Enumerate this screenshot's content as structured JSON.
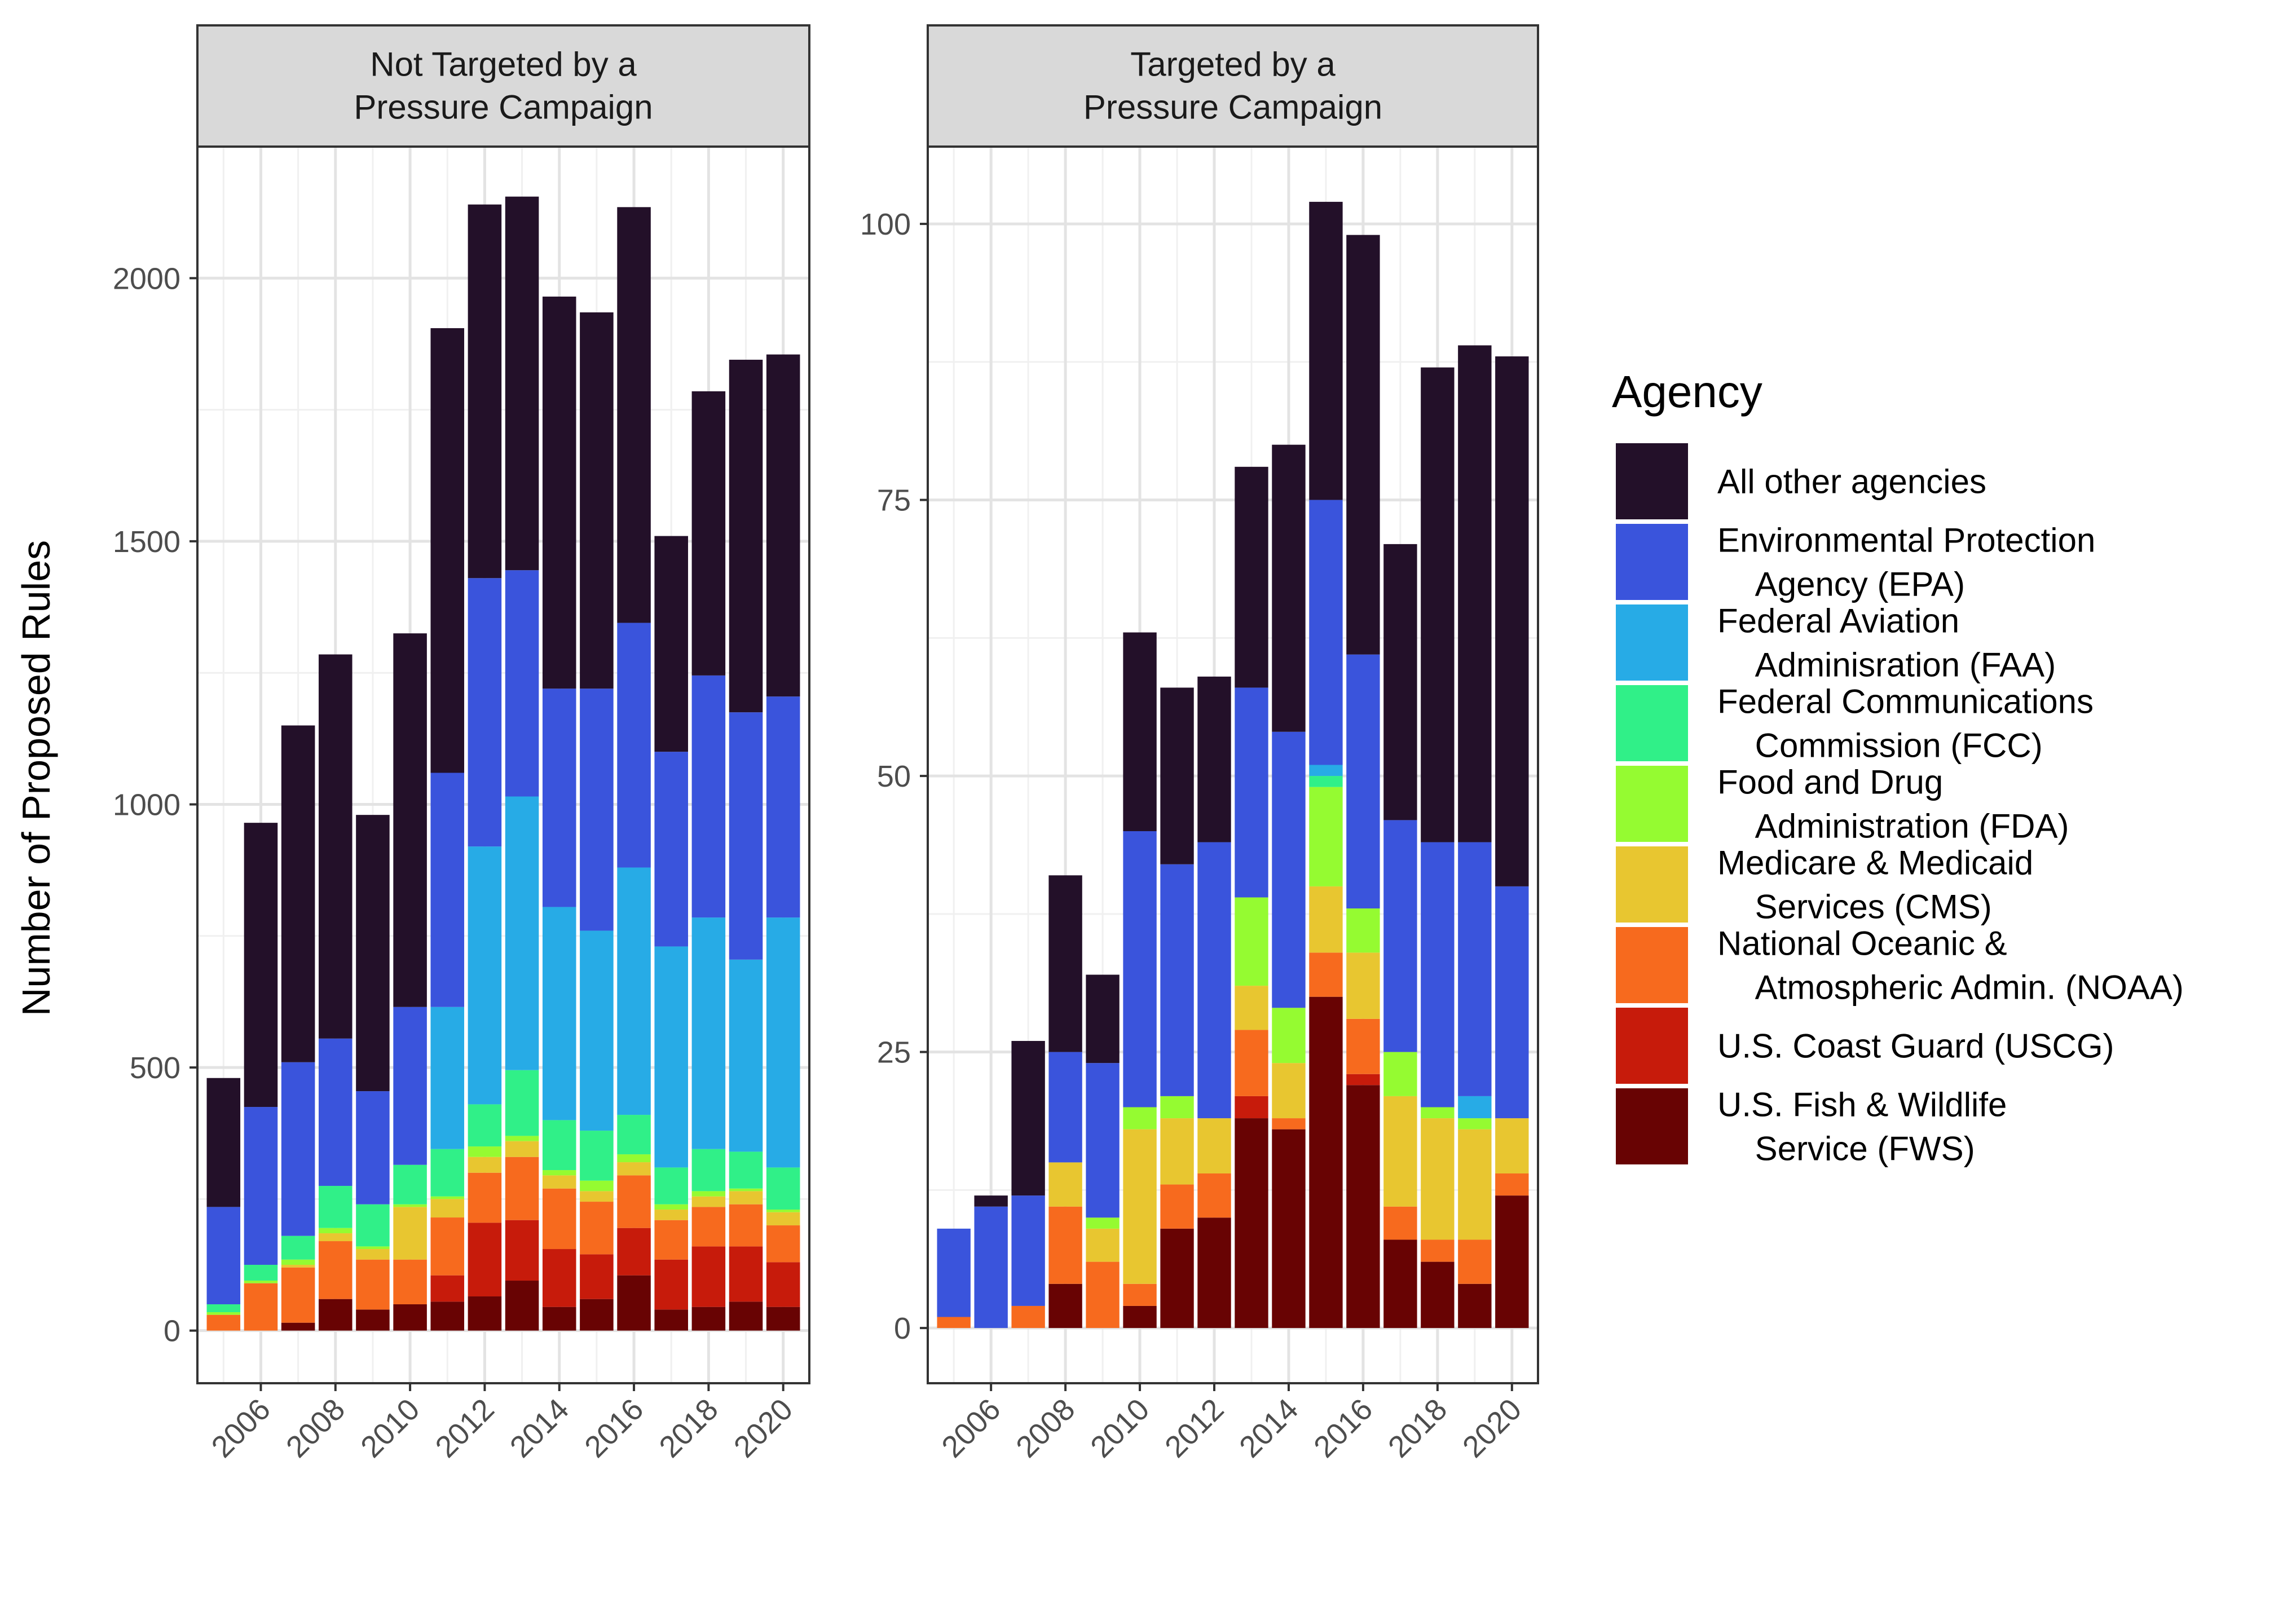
{
  "chart_data": {
    "type": "bar",
    "stacked": true,
    "ylabel": "Number of Proposed Rules",
    "xlabel": "",
    "grid": true,
    "legend_position": "right",
    "legend": {
      "title": "Agency",
      "entries": [
        {
          "key": "other",
          "lines": [
            "All other agencies"
          ],
          "color": "#231029"
        },
        {
          "key": "epa",
          "lines": [
            "Environmental Protection",
            "  Agency (EPA)"
          ],
          "color": "#3a54dc"
        },
        {
          "key": "faa",
          "lines": [
            "Federal Aviation",
            "  Adminisration (FAA)"
          ],
          "color": "#27abe6"
        },
        {
          "key": "fcc",
          "lines": [
            "Federal Communications",
            "  Commission (FCC)"
          ],
          "color": "#30f088"
        },
        {
          "key": "fda",
          "lines": [
            "Food and Drug",
            "  Administration (FDA)"
          ],
          "color": "#95fb31"
        },
        {
          "key": "cms",
          "lines": [
            "Medicare & Medicaid",
            "  Services (CMS)"
          ],
          "color": "#e8c630"
        },
        {
          "key": "noaa",
          "lines": [
            "National Oceanic &",
            "  Atmospheric Admin. (NOAA)"
          ],
          "color": "#f76a1e"
        },
        {
          "key": "uscg",
          "lines": [
            "U.S. Coast Guard (USCG)"
          ],
          "color": "#c71b0b"
        },
        {
          "key": "fws",
          "lines": [
            "U.S. Fish & Wildlife",
            "  Service (FWS)"
          ],
          "color": "#680303"
        }
      ]
    },
    "stack_order": [
      "fws",
      "uscg",
      "noaa",
      "cms",
      "fda",
      "fcc",
      "faa",
      "epa",
      "other"
    ],
    "panels": [
      {
        "strip_lines": [
          "Not Targeted by a",
          "Pressure Campaign"
        ],
        "ylim": [
          -100,
          2250
        ],
        "yticks": [
          0,
          500,
          1000,
          1500,
          2000
        ],
        "xlim": [
          2004.3,
          2020.7
        ],
        "xticks": [
          2006,
          2008,
          2010,
          2012,
          2014,
          2016,
          2018,
          2020
        ],
        "years": [
          2005,
          2006,
          2007,
          2008,
          2009,
          2010,
          2011,
          2012,
          2013,
          2014,
          2015,
          2016,
          2017,
          2018,
          2019,
          2020
        ],
        "series": {
          "fws": [
            0,
            0,
            15,
            60,
            40,
            50,
            55,
            65,
            95,
            45,
            60,
            105,
            40,
            45,
            55,
            45
          ],
          "uscg": [
            0,
            0,
            0,
            0,
            0,
            0,
            50,
            140,
            115,
            110,
            85,
            90,
            95,
            115,
            105,
            85
          ],
          "noaa": [
            30,
            90,
            105,
            110,
            95,
            85,
            110,
            95,
            120,
            115,
            100,
            100,
            75,
            75,
            80,
            70
          ],
          "cms": [
            0,
            0,
            5,
            15,
            20,
            100,
            35,
            30,
            30,
            25,
            20,
            25,
            20,
            20,
            25,
            25
          ],
          "fda": [
            5,
            5,
            10,
            10,
            5,
            5,
            5,
            20,
            10,
            10,
            20,
            15,
            10,
            10,
            5,
            5
          ],
          "fcc": [
            15,
            30,
            45,
            80,
            80,
            75,
            90,
            80,
            125,
            95,
            95,
            75,
            70,
            80,
            70,
            80
          ],
          "faa": [
            0,
            0,
            0,
            0,
            0,
            0,
            270,
            490,
            520,
            405,
            380,
            470,
            420,
            440,
            365,
            475
          ],
          "epa": [
            185,
            300,
            330,
            280,
            215,
            300,
            445,
            510,
            430,
            415,
            460,
            465,
            370,
            460,
            470,
            420
          ],
          "other": [
            245,
            540,
            640,
            730,
            525,
            710,
            845,
            710,
            710,
            745,
            715,
            790,
            410,
            540,
            670,
            650
          ]
        }
      },
      {
        "strip_lines": [
          "Targeted by a",
          "Pressure Campaign"
        ],
        "ylim": [
          -5,
          107
        ],
        "yticks": [
          0,
          25,
          50,
          75,
          100
        ],
        "xlim": [
          2004.3,
          2020.7
        ],
        "xticks": [
          2006,
          2008,
          2010,
          2012,
          2014,
          2016,
          2018,
          2020
        ],
        "years": [
          2005,
          2006,
          2007,
          2008,
          2009,
          2010,
          2011,
          2012,
          2013,
          2014,
          2015,
          2016,
          2017,
          2018,
          2019,
          2020
        ],
        "series": {
          "fws": [
            0,
            0,
            0,
            4,
            0,
            2,
            9,
            10,
            19,
            18,
            30,
            22,
            8,
            6,
            4,
            12
          ],
          "uscg": [
            0,
            0,
            0,
            0,
            0,
            0,
            0,
            0,
            2,
            0,
            0,
            1,
            0,
            0,
            0,
            0
          ],
          "noaa": [
            1,
            0,
            2,
            7,
            6,
            2,
            4,
            4,
            6,
            1,
            4,
            5,
            3,
            2,
            4,
            2
          ],
          "cms": [
            0,
            0,
            0,
            4,
            3,
            14,
            6,
            5,
            4,
            5,
            6,
            6,
            10,
            11,
            10,
            5
          ],
          "fda": [
            0,
            0,
            0,
            0,
            1,
            2,
            2,
            0,
            8,
            5,
            9,
            4,
            4,
            1,
            1,
            0
          ],
          "fcc": [
            0,
            0,
            0,
            0,
            0,
            0,
            0,
            0,
            0,
            0,
            1,
            0,
            0,
            0,
            0,
            0
          ],
          "faa": [
            0,
            0,
            0,
            0,
            0,
            0,
            0,
            0,
            0,
            0,
            1,
            0,
            0,
            0,
            2,
            0
          ],
          "epa": [
            8,
            11,
            10,
            10,
            14,
            25,
            21,
            25,
            19,
            25,
            24,
            23,
            21,
            24,
            23,
            21
          ],
          "other": [
            0,
            1,
            14,
            16,
            8,
            18,
            16,
            15,
            20,
            26,
            27,
            38,
            25,
            43,
            45,
            48
          ]
        }
      }
    ]
  }
}
